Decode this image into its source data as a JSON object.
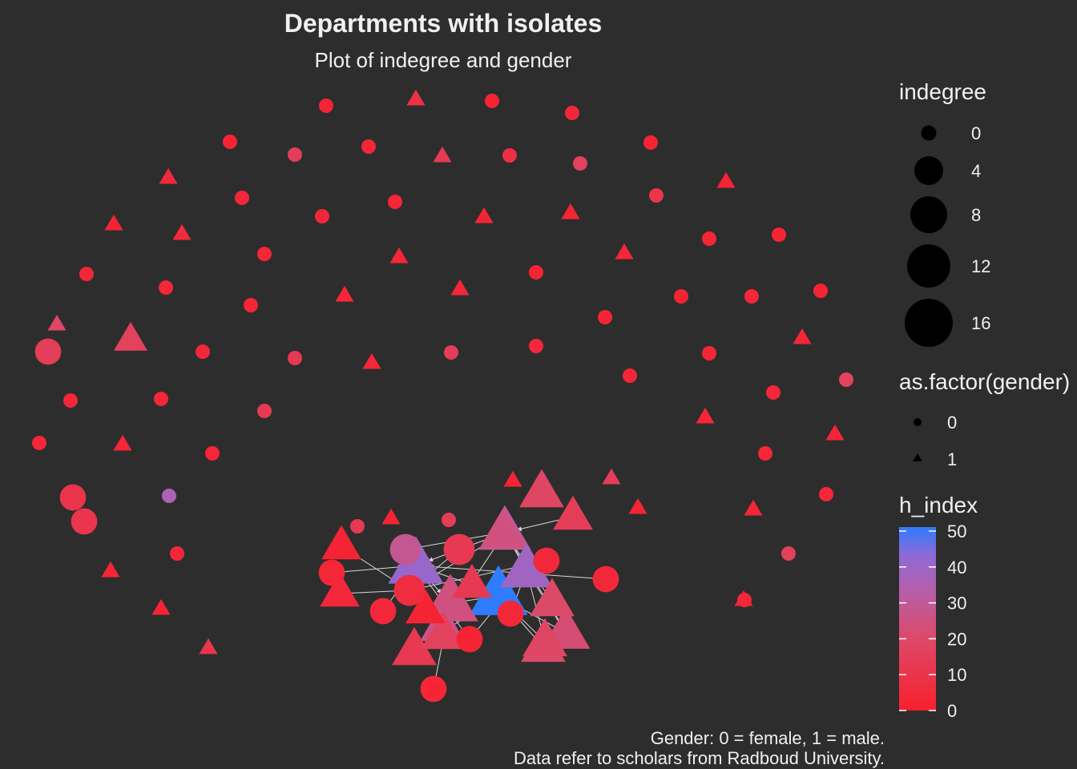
{
  "chart_data": {
    "type": "scatter",
    "title": "Departments with isolates",
    "subtitle": "Plot of indegree and gender",
    "caption": [
      "Gender: 0 = female, 1 = male.",
      "Data refer to scholars from Radboud University."
    ],
    "legends": {
      "size": {
        "title": "indegree",
        "values": [
          0,
          4,
          8,
          12,
          16
        ]
      },
      "shape": {
        "title": "as.factor(gender)",
        "entries": [
          {
            "label": "0",
            "shape": "circle"
          },
          {
            "label": "1",
            "shape": "triangle"
          }
        ]
      },
      "color": {
        "title": "h_index",
        "range": [
          0,
          50
        ],
        "ticks": [
          0,
          10,
          20,
          30,
          40,
          50
        ],
        "low_color": "#f8202e",
        "high_color": "#2f7cff"
      }
    },
    "colors": {
      "background": "#2d2d2d",
      "edge": "#d8d8d8",
      "text": "#f0f0f0"
    },
    "nodes": [
      {
        "id": 1,
        "shape": "circle",
        "indegree": 0,
        "h_index": 2
      },
      {
        "id": 2,
        "shape": "triangle",
        "indegree": 0,
        "h_index": 8
      },
      {
        "id": 3,
        "shape": "circle",
        "indegree": 0,
        "h_index": 2
      },
      {
        "id": 4,
        "shape": "circle",
        "indegree": 0,
        "h_index": 4
      },
      {
        "id": 5,
        "shape": "circle",
        "indegree": 0,
        "h_index": 2
      },
      {
        "id": 6,
        "shape": "circle",
        "indegree": 0,
        "h_index": 14
      },
      {
        "id": 7,
        "shape": "circle",
        "indegree": 0,
        "h_index": 3
      },
      {
        "id": 8,
        "shape": "triangle",
        "indegree": 0,
        "h_index": 12
      },
      {
        "id": 9,
        "shape": "circle",
        "indegree": 0,
        "h_index": 7
      },
      {
        "id": 10,
        "shape": "circle",
        "indegree": 0,
        "h_index": 16
      },
      {
        "id": 11,
        "shape": "circle",
        "indegree": 0,
        "h_index": 2
      },
      {
        "id": 12,
        "shape": "triangle",
        "indegree": 0,
        "h_index": 4
      },
      {
        "id": 13,
        "shape": "triangle",
        "indegree": 0,
        "h_index": 2
      },
      {
        "id": 14,
        "shape": "circle",
        "indegree": 0,
        "h_index": 3
      },
      {
        "id": 15,
        "shape": "circle",
        "indegree": 0,
        "h_index": 3
      },
      {
        "id": 16,
        "shape": "triangle",
        "indegree": 0,
        "h_index": 2
      },
      {
        "id": 17,
        "shape": "triangle",
        "indegree": 0,
        "h_index": 5
      },
      {
        "id": 18,
        "shape": "circle",
        "indegree": 0,
        "h_index": 10
      },
      {
        "id": 19,
        "shape": "triangle",
        "indegree": 0,
        "h_index": 2
      },
      {
        "id": 20,
        "shape": "triangle",
        "indegree": 0,
        "h_index": 18
      },
      {
        "id": 21,
        "shape": "circle",
        "indegree": 0,
        "h_index": 4
      },
      {
        "id": 22,
        "shape": "triangle",
        "indegree": 0,
        "h_index": 2
      },
      {
        "id": 23,
        "shape": "circle",
        "indegree": 0,
        "h_index": 3
      },
      {
        "id": 24,
        "shape": "circle",
        "indegree": 0,
        "h_index": 3
      },
      {
        "id": 25,
        "shape": "triangle",
        "indegree": 0,
        "h_index": 3
      },
      {
        "id": 26,
        "shape": "triangle",
        "indegree": 0,
        "h_index": 3
      },
      {
        "id": 27,
        "shape": "circle",
        "indegree": 0,
        "h_index": 2
      },
      {
        "id": 28,
        "shape": "circle",
        "indegree": 0,
        "h_index": 3
      },
      {
        "id": 29,
        "shape": "circle",
        "indegree": 0,
        "h_index": 3
      },
      {
        "id": 30,
        "shape": "circle",
        "indegree": 0,
        "h_index": 3
      },
      {
        "id": 31,
        "shape": "circle",
        "indegree": 0,
        "h_index": 2
      },
      {
        "id": 32,
        "shape": "triangle",
        "indegree": 0,
        "h_index": 3
      },
      {
        "id": 33,
        "shape": "triangle",
        "indegree": 0,
        "h_index": 3
      },
      {
        "id": 34,
        "shape": "circle",
        "indegree": 0,
        "h_index": 2
      },
      {
        "id": 35,
        "shape": "circle",
        "indegree": 0,
        "h_index": 3
      },
      {
        "id": 36,
        "shape": "circle",
        "indegree": 0,
        "h_index": 2
      },
      {
        "id": 37,
        "shape": "triangle",
        "indegree": 2,
        "h_index": 16
      },
      {
        "id": 38,
        "shape": "circle",
        "indegree": 2,
        "h_index": 14
      },
      {
        "id": 39,
        "shape": "circle",
        "indegree": 0,
        "h_index": 4
      },
      {
        "id": 40,
        "shape": "circle",
        "indegree": 0,
        "h_index": 12
      },
      {
        "id": 41,
        "shape": "circle",
        "indegree": 0,
        "h_index": 2
      },
      {
        "id": 42,
        "shape": "triangle",
        "indegree": 0,
        "h_index": 3
      },
      {
        "id": 43,
        "shape": "circle",
        "indegree": 0,
        "h_index": 14
      },
      {
        "id": 44,
        "shape": "circle",
        "indegree": 0,
        "h_index": 3
      },
      {
        "id": 45,
        "shape": "circle",
        "indegree": 0,
        "h_index": 4
      },
      {
        "id": 46,
        "shape": "triangle",
        "indegree": 0,
        "h_index": 3
      },
      {
        "id": 47,
        "shape": "circle",
        "indegree": 0,
        "h_index": 16
      },
      {
        "id": 48,
        "shape": "circle",
        "indegree": 0,
        "h_index": 3
      },
      {
        "id": 49,
        "shape": "circle",
        "indegree": 0,
        "h_index": 3
      },
      {
        "id": 50,
        "shape": "circle",
        "indegree": 0,
        "h_index": 12
      },
      {
        "id": 51,
        "shape": "circle",
        "indegree": 0,
        "h_index": 3
      },
      {
        "id": 52,
        "shape": "circle",
        "indegree": 0,
        "h_index": 3
      },
      {
        "id": 53,
        "shape": "circle",
        "indegree": 0,
        "h_index": 3
      },
      {
        "id": 54,
        "shape": "triangle",
        "indegree": 0,
        "h_index": 3
      },
      {
        "id": 55,
        "shape": "triangle",
        "indegree": 0,
        "h_index": 3
      },
      {
        "id": 56,
        "shape": "circle",
        "indegree": 0,
        "h_index": 3
      },
      {
        "id": 57,
        "shape": "triangle",
        "indegree": 0,
        "h_index": 3
      },
      {
        "id": 58,
        "shape": "circle",
        "indegree": 0,
        "h_index": 35
      },
      {
        "id": 59,
        "shape": "circle",
        "indegree": 0,
        "h_index": 3
      },
      {
        "id": 60,
        "shape": "circle",
        "indegree": 0,
        "h_index": 3
      },
      {
        "id": 61,
        "shape": "triangle",
        "indegree": 0,
        "h_index": 3
      },
      {
        "id": 62,
        "shape": "triangle",
        "indegree": 0,
        "h_index": 3
      },
      {
        "id": 63,
        "shape": "triangle",
        "indegree": 0,
        "h_index": 2
      },
      {
        "id": 64,
        "shape": "triangle",
        "indegree": 0,
        "h_index": 10
      },
      {
        "id": 65,
        "shape": "circle",
        "indegree": 0,
        "h_index": 3
      },
      {
        "id": 66,
        "shape": "triangle",
        "indegree": 0,
        "h_index": 3
      },
      {
        "id": 67,
        "shape": "circle",
        "indegree": 0,
        "h_index": 15
      },
      {
        "id": 68,
        "shape": "circle",
        "indegree": 0,
        "h_index": 3
      },
      {
        "id": 69,
        "shape": "circle",
        "indegree": 2,
        "h_index": 10
      },
      {
        "id": 70,
        "shape": "circle",
        "indegree": 2,
        "h_index": 10
      },
      {
        "id": 71,
        "shape": "circle",
        "indegree": 0,
        "h_index": 12
      },
      {
        "id": 72,
        "shape": "triangle",
        "indegree": 0,
        "h_index": 14
      },
      {
        "id": 73,
        "shape": "triangle",
        "indegree": 0,
        "h_index": 2
      },
      {
        "id": 74,
        "shape": "circle",
        "indegree": 0,
        "h_index": 14
      },
      {
        "id": 75,
        "shape": "triangle",
        "indegree": 0,
        "h_index": 2
      },
      {
        "id": 76,
        "shape": "triangle",
        "indegree": 0,
        "h_index": 2
      },
      {
        "id": 77,
        "shape": "circle",
        "indegree": 0,
        "h_index": 2
      },
      {
        "id": 78,
        "shape": "triangle",
        "indegree": 4,
        "h_index": 2
      },
      {
        "id": 79,
        "shape": "triangle",
        "indegree": 6,
        "h_index": 18
      },
      {
        "id": 80,
        "shape": "triangle",
        "indegree": 4,
        "h_index": 14
      },
      {
        "id": 81,
        "shape": "triangle",
        "indegree": 4,
        "h_index": 4
      },
      {
        "id": 82,
        "shape": "triangle",
        "indegree": 6,
        "h_index": 24
      },
      {
        "id": 83,
        "shape": "circle",
        "indegree": 2,
        "h_index": 3
      },
      {
        "id": 84,
        "shape": "circle",
        "indegree": 2,
        "h_index": 4
      },
      {
        "id": 85,
        "shape": "triangle",
        "indegree": 4,
        "h_index": 2
      },
      {
        "id": 86,
        "shape": "circle",
        "indegree": 4,
        "h_index": 28
      },
      {
        "id": 87,
        "shape": "triangle",
        "indegree": 10,
        "h_index": 28
      },
      {
        "id": 88,
        "shape": "circle",
        "indegree": 4,
        "h_index": 12
      },
      {
        "id": 89,
        "shape": "circle",
        "indegree": 2,
        "h_index": 4
      },
      {
        "id": 90,
        "shape": "triangle",
        "indegree": 4,
        "h_index": 12
      },
      {
        "id": 91,
        "shape": "circle",
        "indegree": 2,
        "h_index": 4
      },
      {
        "id": 92,
        "shape": "triangle",
        "indegree": 12,
        "h_index": 40
      },
      {
        "id": 93,
        "shape": "circle",
        "indegree": 2,
        "h_index": 8
      },
      {
        "id": 94,
        "shape": "triangle",
        "indegree": 10,
        "h_index": 38
      },
      {
        "id": 95,
        "shape": "circle",
        "indegree": 4,
        "h_index": 6
      },
      {
        "id": 96,
        "shape": "triangle",
        "indegree": 6,
        "h_index": 26
      },
      {
        "id": 97,
        "shape": "triangle",
        "indegree": 6,
        "h_index": 20
      },
      {
        "id": 98,
        "shape": "triangle",
        "indegree": 6,
        "h_index": 22
      },
      {
        "id": 99,
        "shape": "triangle",
        "indegree": 12,
        "h_index": 24
      },
      {
        "id": 100,
        "shape": "triangle",
        "indegree": 14,
        "h_index": 51
      },
      {
        "id": 101,
        "shape": "triangle",
        "indegree": 6,
        "h_index": 12
      },
      {
        "id": 102,
        "shape": "triangle",
        "indegree": 6,
        "h_index": 20
      },
      {
        "id": 103,
        "shape": "circle",
        "indegree": 2,
        "h_index": 4
      },
      {
        "id": 104,
        "shape": "triangle",
        "indegree": 6,
        "h_index": 16
      },
      {
        "id": 105,
        "shape": "triangle",
        "indegree": 6,
        "h_index": 18
      },
      {
        "id": 106,
        "shape": "triangle",
        "indegree": 8,
        "h_index": 22
      },
      {
        "id": 107,
        "shape": "circle",
        "indegree": 2,
        "h_index": 2
      },
      {
        "id": 108,
        "shape": "circle",
        "indegree": 2,
        "h_index": 3
      }
    ],
    "edges": [
      [
        78,
        95
      ],
      [
        81,
        95
      ],
      [
        86,
        95
      ],
      [
        87,
        95
      ],
      [
        88,
        95
      ],
      [
        89,
        95
      ],
      [
        92,
        95
      ],
      [
        82,
        86
      ],
      [
        83,
        92
      ],
      [
        84,
        92
      ],
      [
        85,
        92
      ],
      [
        88,
        92
      ],
      [
        90,
        92
      ],
      [
        91,
        92
      ],
      [
        93,
        92
      ],
      [
        94,
        87
      ],
      [
        96,
        87
      ],
      [
        98,
        87
      ],
      [
        88,
        87
      ],
      [
        97,
        87
      ],
      [
        80,
        87
      ],
      [
        89,
        94
      ],
      [
        103,
        94
      ],
      [
        107,
        94
      ],
      [
        105,
        94
      ],
      [
        106,
        94
      ],
      [
        99,
        100
      ],
      [
        106,
        100
      ],
      [
        102,
        100
      ],
      [
        101,
        100
      ],
      [
        105,
        100
      ],
      [
        104,
        99
      ],
      [
        108,
        99
      ],
      [
        92,
        99
      ],
      [
        96,
        99
      ]
    ]
  }
}
